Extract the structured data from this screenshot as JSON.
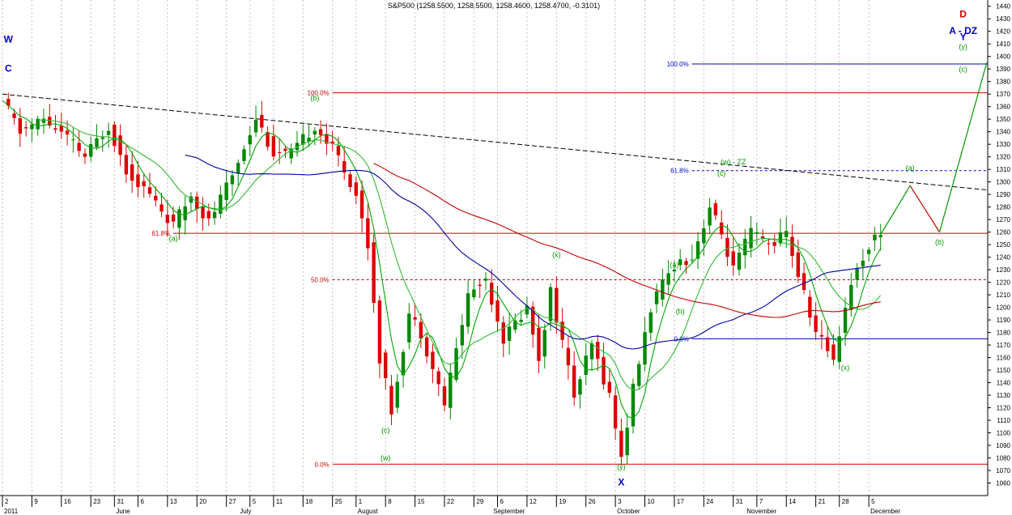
{
  "title": "S&P500 (1258.5500, 1258.5500, 1258.4600, 1258.4700, -0.3101)",
  "chart_data": {
    "type": "candlestick",
    "symbol": "S&P500",
    "ylim": [
      1050,
      1445
    ],
    "y_ticks": [
      1060,
      1070,
      1080,
      1090,
      1100,
      1110,
      1120,
      1130,
      1140,
      1150,
      1160,
      1170,
      1180,
      1190,
      1200,
      1210,
      1220,
      1230,
      1240,
      1250,
      1260,
      1270,
      1280,
      1290,
      1300,
      1310,
      1320,
      1330,
      1340,
      1350,
      1360,
      1370,
      1380,
      1390,
      1400,
      1410,
      1420,
      1430,
      1440
    ],
    "x_day_labels": [
      {
        "i": 0,
        "t": "2"
      },
      {
        "i": 5,
        "t": "9"
      },
      {
        "i": 10,
        "t": "16"
      },
      {
        "i": 15,
        "t": "23"
      },
      {
        "i": 19,
        "t": "31"
      },
      {
        "i": 23,
        "t": "6"
      },
      {
        "i": 28,
        "t": "13"
      },
      {
        "i": 33,
        "t": "20"
      },
      {
        "i": 38,
        "t": "27"
      },
      {
        "i": 42,
        "t": "5"
      },
      {
        "i": 46,
        "t": "11"
      },
      {
        "i": 51,
        "t": "18"
      },
      {
        "i": 56,
        "t": "25"
      },
      {
        "i": 60,
        "t": "1"
      },
      {
        "i": 65,
        "t": "8"
      },
      {
        "i": 70,
        "t": "15"
      },
      {
        "i": 75,
        "t": "22"
      },
      {
        "i": 80,
        "t": "29"
      },
      {
        "i": 84,
        "t": "6"
      },
      {
        "i": 89,
        "t": "12"
      },
      {
        "i": 94,
        "t": "19"
      },
      {
        "i": 99,
        "t": "26"
      },
      {
        "i": 104,
        "t": "3"
      },
      {
        "i": 109,
        "t": "10"
      },
      {
        "i": 114,
        "t": "17"
      },
      {
        "i": 119,
        "t": "24"
      },
      {
        "i": 124,
        "t": "31"
      },
      {
        "i": 128,
        "t": "7"
      },
      {
        "i": 133,
        "t": "14"
      },
      {
        "i": 138,
        "t": "21"
      },
      {
        "i": 142,
        "t": "28"
      },
      {
        "i": 147,
        "t": "5"
      }
    ],
    "x_month_labels": [
      {
        "i": 0,
        "t": "2011"
      },
      {
        "i": 19,
        "t": "June"
      },
      {
        "i": 40,
        "t": "July"
      },
      {
        "i": 60,
        "t": "August"
      },
      {
        "i": 83,
        "t": "September"
      },
      {
        "i": 104,
        "t": "October"
      },
      {
        "i": 126,
        "t": "November"
      },
      {
        "i": 147,
        "t": "December"
      }
    ],
    "close_waypoints": [
      [
        0,
        1365
      ],
      [
        3,
        1340
      ],
      [
        7,
        1350
      ],
      [
        11,
        1335
      ],
      [
        14,
        1320
      ],
      [
        18,
        1345
      ],
      [
        21,
        1310
      ],
      [
        25,
        1290
      ],
      [
        29,
        1265
      ],
      [
        32,
        1290
      ],
      [
        35,
        1268
      ],
      [
        39,
        1305
      ],
      [
        43,
        1352
      ],
      [
        46,
        1323
      ],
      [
        49,
        1322
      ],
      [
        53,
        1345
      ],
      [
        57,
        1320
      ],
      [
        60,
        1290
      ],
      [
        62,
        1250
      ],
      [
        64,
        1160
      ],
      [
        66,
        1118
      ],
      [
        69,
        1195
      ],
      [
        71,
        1180
      ],
      [
        75,
        1123
      ],
      [
        79,
        1210
      ],
      [
        82,
        1223
      ],
      [
        85,
        1175
      ],
      [
        89,
        1200
      ],
      [
        91,
        1160
      ],
      [
        93,
        1213
      ],
      [
        97,
        1130
      ],
      [
        100,
        1170
      ],
      [
        103,
        1130
      ],
      [
        105,
        1080
      ],
      [
        107,
        1135
      ],
      [
        110,
        1200
      ],
      [
        114,
        1235
      ],
      [
        117,
        1240
      ],
      [
        120,
        1280
      ],
      [
        122,
        1258
      ],
      [
        124,
        1230
      ],
      [
        127,
        1260
      ],
      [
        130,
        1250
      ],
      [
        133,
        1259
      ],
      [
        136,
        1210
      ],
      [
        138,
        1180
      ],
      [
        141,
        1160
      ],
      [
        144,
        1220
      ],
      [
        147,
        1250
      ],
      [
        149,
        1260
      ]
    ],
    "ma_series": [
      {
        "color": "#00aa00",
        "start": 0,
        "period": 5
      },
      {
        "color": "#33bb33",
        "start": 6,
        "period": 12
      },
      {
        "color": "#0000a0",
        "start": 31,
        "period": 34
      },
      {
        "color": "#c00000",
        "start": 63,
        "period": 70
      }
    ],
    "levels": [
      {
        "label": "100.0%",
        "value": 1394,
        "start": 117,
        "end": 174,
        "color": "#0000cc",
        "dash": false
      },
      {
        "label": "100.0%",
        "value": 1371,
        "start": 56,
        "end": 174,
        "color": "#cc0000",
        "dash": false
      },
      {
        "label": "61.8%",
        "value": 1309,
        "start": 117,
        "end": 174,
        "color": "#0000cc",
        "dash": true
      },
      {
        "label": "61.8%",
        "value": 1259,
        "start": 29,
        "end": 174,
        "color": "#cc0000",
        "dash": false
      },
      {
        "label": "50.0%",
        "value": 1222,
        "start": 56,
        "end": 174,
        "color": "#cc0000",
        "dash": true
      },
      {
        "label": "0.0%",
        "value": 1175,
        "start": 117,
        "end": 174,
        "color": "#0000cc",
        "dash": false
      },
      {
        "label": "0.0%",
        "value": 1075,
        "start": 56,
        "end": 174,
        "color": "#cc0000",
        "dash": false
      }
    ],
    "trendline": {
      "from": [
        0,
        1370
      ],
      "to": [
        175,
        1290
      ]
    },
    "projection": {
      "points": [
        [
          149,
          1258
        ],
        [
          154,
          1297
        ],
        [
          159,
          1260
        ],
        [
          167,
          1395
        ]
      ]
    },
    "wave_labels": [
      {
        "t": "(a)",
        "i": 29,
        "v": 1253,
        "color": "#009900"
      },
      {
        "t": "(b)",
        "i": 53,
        "v": 1365,
        "color": "#009900"
      },
      {
        "t": "(c)",
        "i": 65,
        "v": 1100,
        "color": "#009900"
      },
      {
        "t": "(w)",
        "i": 65,
        "v": 1078,
        "color": "#009900"
      },
      {
        "t": "(x)",
        "i": 94,
        "v": 1240,
        "color": "#009900"
      },
      {
        "t": "(y)",
        "i": 105,
        "v": 1071,
        "color": "#009900"
      },
      {
        "t": "(a)",
        "i": 114,
        "v": 1232,
        "color": "#009900"
      },
      {
        "t": "(b)",
        "i": 115,
        "v": 1195,
        "color": "#009900"
      },
      {
        "t": "(c)",
        "i": 122,
        "v": 1305,
        "color": "#009900"
      },
      {
        "t": "(w) - ZZ",
        "i": 124,
        "v": 1314,
        "color": "#009900"
      },
      {
        "t": "(x)",
        "i": 143,
        "v": 1150,
        "color": "#009900"
      },
      {
        "t": "(a)",
        "i": 154,
        "v": 1309,
        "color": "#009900"
      },
      {
        "t": "(b)",
        "i": 159,
        "v": 1250,
        "color": "#009900"
      },
      {
        "t": "(c)",
        "i": 163,
        "v": 1388,
        "color": "#009900"
      },
      {
        "t": "(y)",
        "i": 163,
        "v": 1406,
        "color": "#009900"
      },
      {
        "t": "X",
        "i": 105,
        "v": 1058,
        "color": "#0000cc"
      },
      {
        "t": "W",
        "i": 1,
        "v": 1411,
        "color": "#0000cc"
      },
      {
        "t": "C",
        "i": 1,
        "v": 1388,
        "color": "#0000cc"
      },
      {
        "t": "D",
        "i": 163,
        "v": 1431,
        "color": "#cc0000"
      },
      {
        "t": "Y",
        "i": 163,
        "v": 1413,
        "color": "#0000cc"
      },
      {
        "t": "A - DZ",
        "i": 163,
        "v": 1418,
        "color": "#0000cc"
      }
    ]
  }
}
